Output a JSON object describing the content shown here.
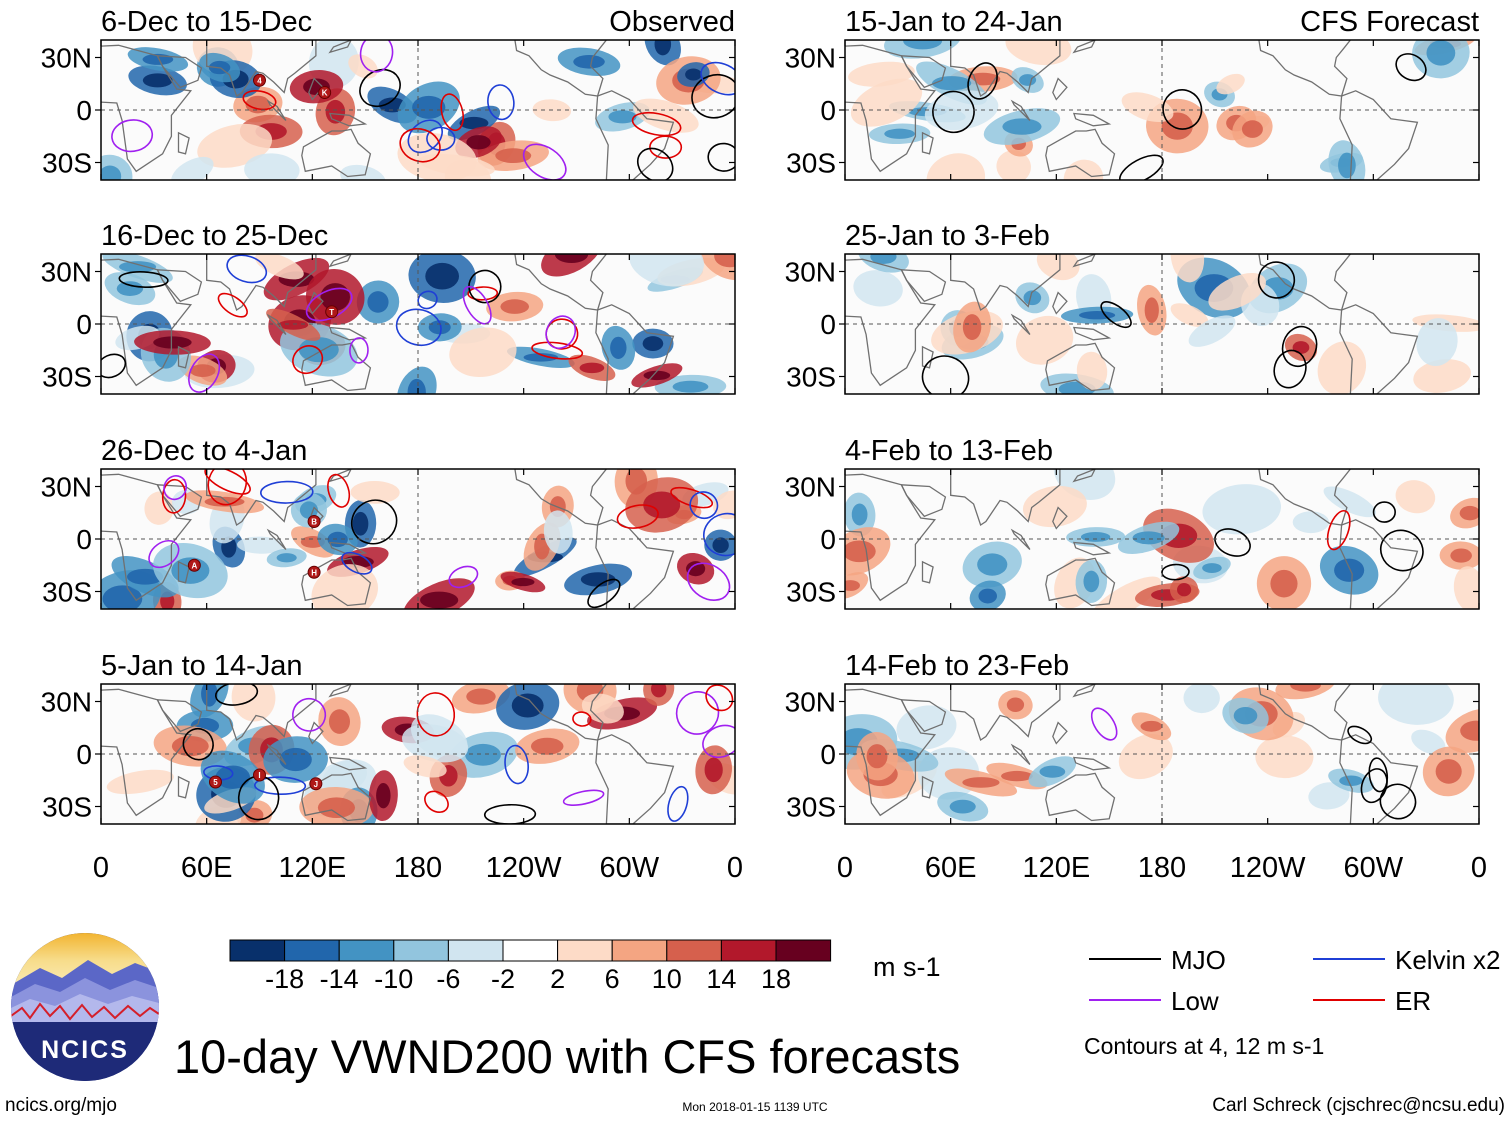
{
  "page": {
    "title": "10-day VWND200 with CFS forecasts",
    "site": "ncics.org/mjo",
    "timestamp": "Mon 2018-01-15 1139 UTC",
    "author": "Carl Schreck (cjschrec@ncsu.edu)",
    "logo_text": "NCICS"
  },
  "colors": {
    "scale": [
      "#08306b",
      "#2166ac",
      "#4393c3",
      "#92c5de",
      "#d1e5f0",
      "#ffffff",
      "#fddbc7",
      "#f4a582",
      "#d6604d",
      "#b2182b",
      "#67001f"
    ],
    "mjo": "#000000",
    "kelvin": "#1f3fd6",
    "low": "#a020f0",
    "er": "#e00000",
    "land": "#707070"
  },
  "chart_data": {
    "type": "heatmap",
    "variable": "VWND200",
    "x_tick_labels": [
      "0",
      "60E",
      "120E",
      "180",
      "120W",
      "60W",
      "0"
    ],
    "y_tick_labels": [
      "30N",
      "0",
      "30S"
    ],
    "x_range_deg_east": [
      0,
      360
    ],
    "y_range_deg": [
      -40,
      40
    ],
    "left_column_label": "Observed",
    "right_column_label": "CFS Forecast",
    "panels": [
      {
        "title": "6-Dec to 15-Dec",
        "column": "observed",
        "cyclones": [
          {
            "lon": 90,
            "lat": 17,
            "label": "4"
          },
          {
            "lon": 127,
            "lat": 10,
            "label": "K"
          }
        ]
      },
      {
        "title": "16-Dec to 25-Dec",
        "column": "observed",
        "cyclones": [
          {
            "lon": 131,
            "lat": 7,
            "label": "T"
          }
        ]
      },
      {
        "title": "26-Dec to 4-Jan",
        "column": "observed",
        "cyclones": [
          {
            "lon": 121,
            "lat": 10,
            "label": "B"
          },
          {
            "lon": 53,
            "lat": -15,
            "label": "A"
          },
          {
            "lon": 121,
            "lat": -19,
            "label": "H"
          }
        ]
      },
      {
        "title": "5-Jan to 14-Jan",
        "column": "observed",
        "cyclones": [
          {
            "lon": 65,
            "lat": -16,
            "label": "5"
          },
          {
            "lon": 90,
            "lat": -12,
            "label": "I"
          },
          {
            "lon": 122,
            "lat": -17,
            "label": "J"
          }
        ]
      },
      {
        "title": "15-Jan to 24-Jan",
        "column": "forecast",
        "cyclones": []
      },
      {
        "title": "25-Jan to 3-Feb",
        "column": "forecast",
        "cyclones": []
      },
      {
        "title": "4-Feb to 13-Feb",
        "column": "forecast",
        "cyclones": []
      },
      {
        "title": "14-Feb to 23-Feb",
        "column": "forecast",
        "cyclones": []
      }
    ],
    "colorbar": {
      "tick_labels": [
        "-18",
        "-14",
        "-10",
        "-6",
        "-2",
        "2",
        "6",
        "10",
        "14",
        "18"
      ],
      "units": "m s-1"
    },
    "legend": {
      "entries": [
        {
          "label": "MJO",
          "color_key": "mjo"
        },
        {
          "label": "Kelvin x2",
          "color_key": "kelvin"
        },
        {
          "label": "Low",
          "color_key": "low"
        },
        {
          "label": "ER",
          "color_key": "er"
        }
      ],
      "note": "Contours at 4, 12 m s-1"
    }
  }
}
